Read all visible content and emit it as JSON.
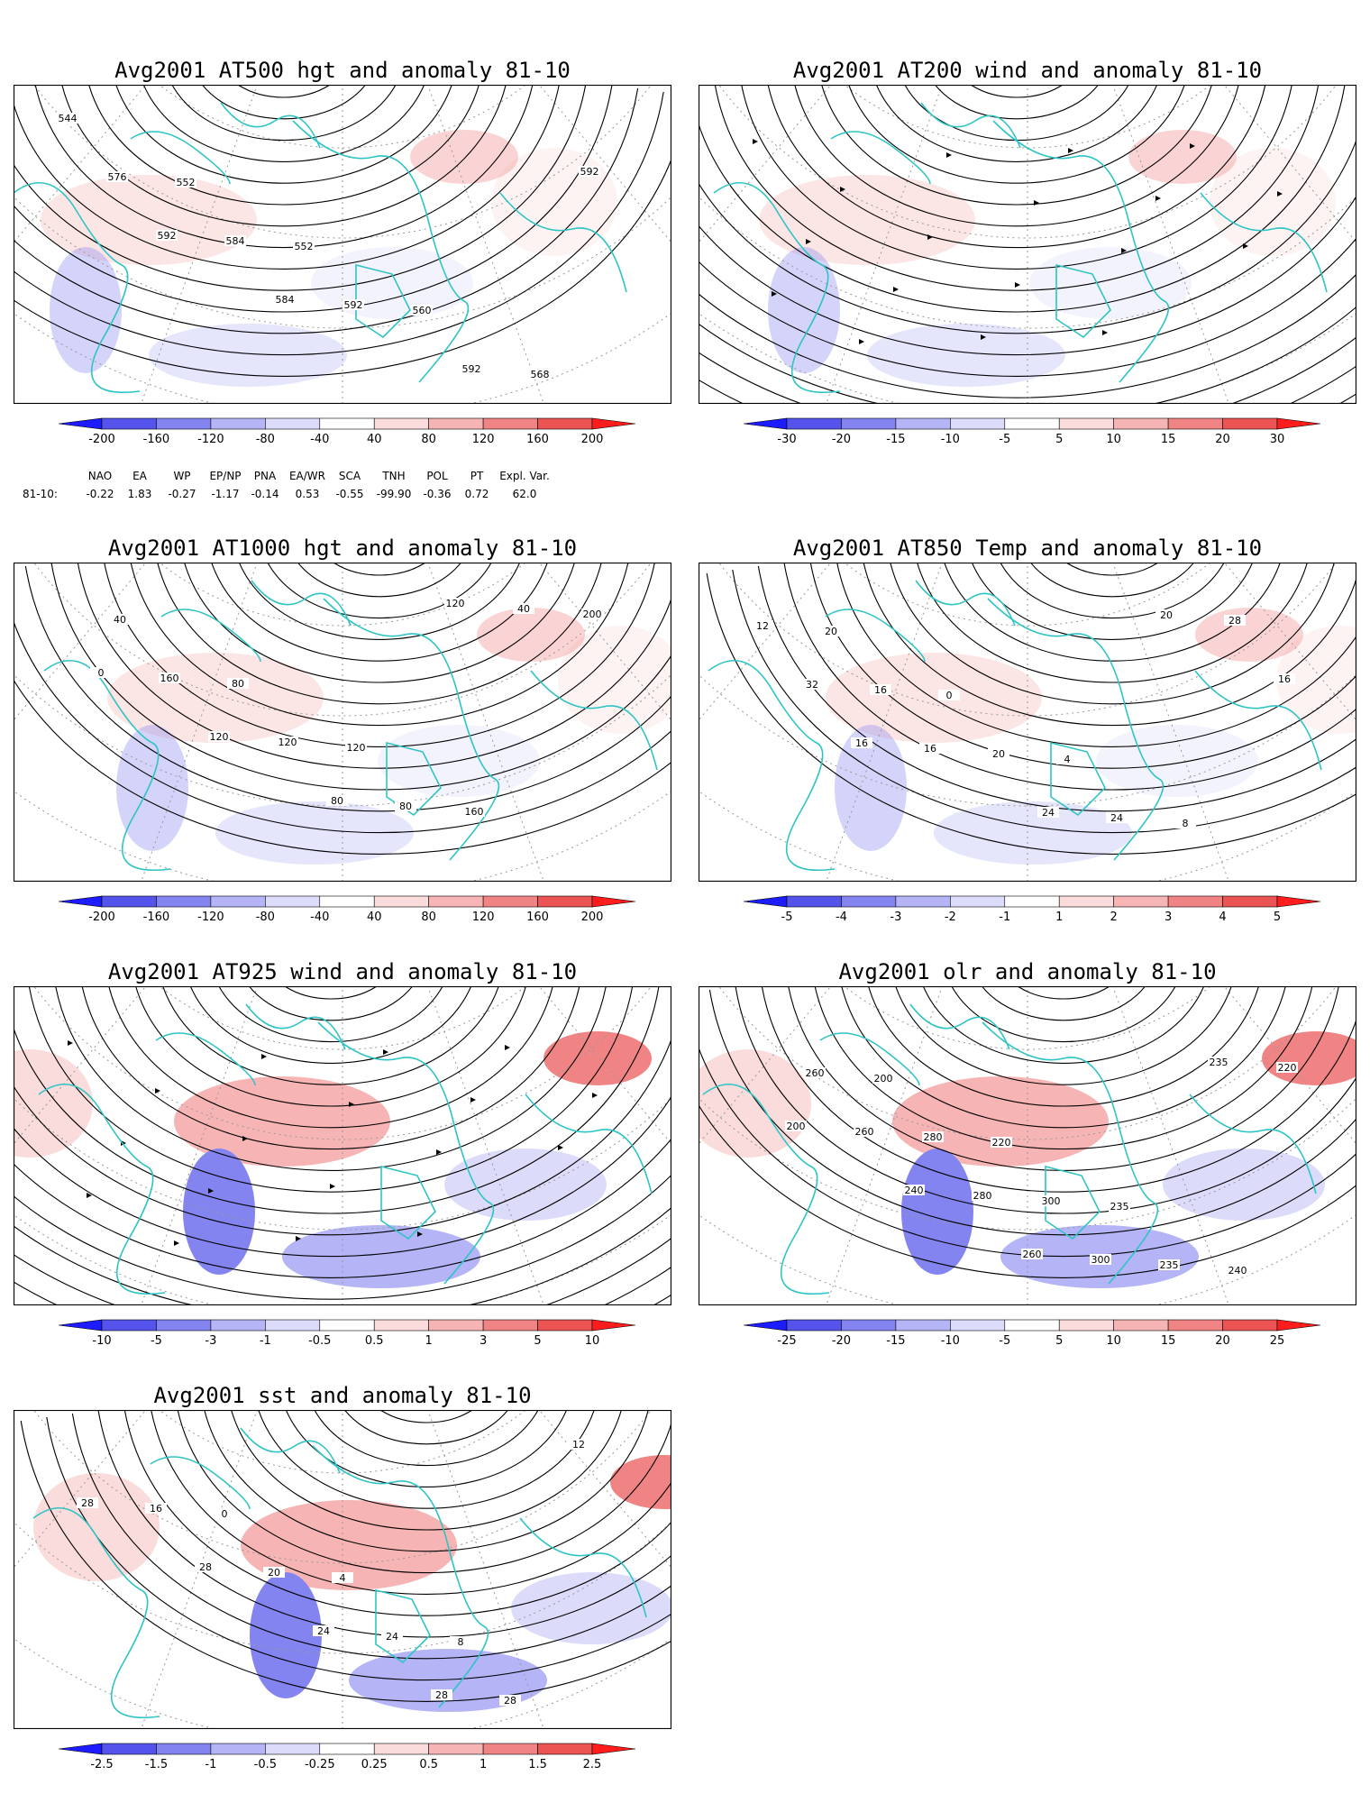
{
  "colors": {
    "coast": "#2ec4c4",
    "contour": "#000000",
    "warm": [
      "#fadcdc",
      "#f6b4b4",
      "#f08484",
      "#ec5454",
      "#ff1c1c"
    ],
    "cold": [
      "#dcdcfa",
      "#b4b4f6",
      "#8484f0",
      "#5454ec",
      "#1c1cff"
    ]
  },
  "panels": [
    {
      "id": "p500",
      "title": "Avg2001 AT500 hgt and anomaly 81-10",
      "kind": "contour",
      "contour_labels": [
        "544",
        "552",
        "552",
        "560",
        "568",
        "576",
        "584",
        "592",
        "592",
        "592",
        "592",
        "584"
      ],
      "colorbar": [
        "-200",
        "-160",
        "-120",
        "-80",
        "-40",
        "40",
        "80",
        "120",
        "160",
        "200"
      ]
    },
    {
      "id": "p200",
      "title": "Avg2001 AT200 wind and anomaly 81-10",
      "kind": "stream",
      "contour_labels": [],
      "colorbar": [
        "-30",
        "-20",
        "-15",
        "-10",
        "-5",
        "5",
        "10",
        "15",
        "20",
        "30"
      ]
    },
    {
      "id": "p1000",
      "title": "Avg2001 AT1000 hgt and anomaly 81-10",
      "kind": "contour",
      "contour_labels": [
        "40",
        "80",
        "120",
        "160",
        "200",
        "160",
        "120",
        "80",
        "40",
        "0",
        "120",
        "80",
        "120"
      ],
      "colorbar": [
        "-200",
        "-160",
        "-120",
        "-80",
        "-40",
        "40",
        "80",
        "120",
        "160",
        "200"
      ]
    },
    {
      "id": "p850",
      "title": "Avg2001 AT850 Temp and anomaly 81-10",
      "kind": "contour",
      "contour_labels": [
        "20",
        "0",
        "4",
        "8",
        "12",
        "16",
        "20",
        "24",
        "28",
        "32",
        "16",
        "24",
        "20",
        "16",
        "16"
      ],
      "colorbar": [
        "-5",
        "-4",
        "-3",
        "-2",
        "-1",
        "1",
        "2",
        "3",
        "4",
        "5"
      ]
    },
    {
      "id": "p925",
      "title": "Avg2001 AT925 wind and anomaly 81-10",
      "kind": "stream",
      "contour_labels": [],
      "colorbar": [
        "-10",
        "-5",
        "-3",
        "-1",
        "-0.5",
        "0.5",
        "1",
        "3",
        "5",
        "10"
      ]
    },
    {
      "id": "polr",
      "title": "Avg2001 olr and anomaly 81-10",
      "kind": "contour",
      "contour_labels": [
        "200",
        "220",
        "235",
        "240",
        "260",
        "280",
        "300",
        "235",
        "220",
        "260",
        "280",
        "300",
        "235",
        "200",
        "240",
        "260"
      ],
      "colorbar": [
        "-25",
        "-20",
        "-15",
        "-10",
        "-5",
        "5",
        "10",
        "15",
        "20",
        "25"
      ]
    },
    {
      "id": "psst",
      "title": "Avg2001 sst and anomaly 81-10",
      "kind": "contour",
      "contour_labels": [
        "0",
        "4",
        "8",
        "12",
        "16",
        "20",
        "24",
        "28",
        "28",
        "28",
        "24",
        "28"
      ],
      "colorbar": [
        "-2.5",
        "-1.5",
        "-1",
        "-0.5",
        "-0.25",
        "0.25",
        "0.5",
        "1",
        "1.5",
        "2.5"
      ]
    }
  ],
  "indices": {
    "headers": [
      "NAO",
      "EA",
      "WP",
      "EP/NP",
      "PNA",
      "EA/WR",
      "SCA",
      "TNH",
      "POL",
      "PT",
      "Expl. Var."
    ],
    "row_label": "81-10:",
    "values": [
      "-0.22",
      "1.83",
      "-0.27",
      "-1.17",
      "-0.14",
      "0.53",
      "-0.55",
      "-99.90",
      "-0.36",
      "0.72",
      "62.0"
    ]
  }
}
